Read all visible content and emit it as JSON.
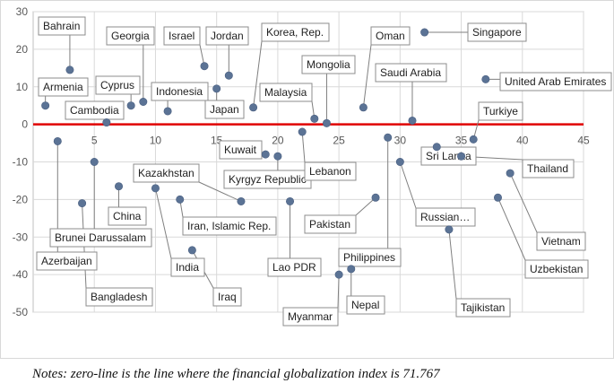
{
  "chart_data": {
    "type": "scatter",
    "title": "",
    "xlabel": "",
    "ylabel": "",
    "xlim": [
      0,
      45
    ],
    "ylim": [
      -50,
      30
    ],
    "xticks": [
      5,
      10,
      15,
      20,
      25,
      30,
      35,
      40,
      45
    ],
    "yticks": [
      30,
      20,
      10,
      0,
      -10,
      -20,
      -30,
      -40,
      -50
    ],
    "grid": true,
    "reference_line": {
      "y": 0,
      "color": "#e00000"
    },
    "marker_color": "#5b7395",
    "points": [
      {
        "label": "Bahrain",
        "x": 3,
        "y": 14.5
      },
      {
        "label": "Armenia",
        "x": 1,
        "y": 5
      },
      {
        "label": "Cambodia",
        "x": 6,
        "y": 0.5
      },
      {
        "label": "Cyprus",
        "x": 8,
        "y": 5
      },
      {
        "label": "Georgia",
        "x": 9,
        "y": 6
      },
      {
        "label": "Indonesia",
        "x": 11,
        "y": 3.5
      },
      {
        "label": "Israel",
        "x": 14,
        "y": 15.5
      },
      {
        "label": "Japan",
        "x": 15,
        "y": 9.5
      },
      {
        "label": "Jordan",
        "x": 16,
        "y": 13
      },
      {
        "label": "Korea, Rep.",
        "x": 18,
        "y": 4.5
      },
      {
        "label": "Malaysia",
        "x": 23,
        "y": 1.5
      },
      {
        "label": "Mongolia",
        "x": 24,
        "y": 0.3
      },
      {
        "label": "Oman",
        "x": 27,
        "y": 4.5
      },
      {
        "label": "Singapore",
        "x": 32,
        "y": 24.5
      },
      {
        "label": "Saudi Arabia",
        "x": 31,
        "y": 1
      },
      {
        "label": "United Arab Emirates",
        "x": 37,
        "y": 12
      },
      {
        "label": "Turkiye",
        "x": 36,
        "y": -4
      },
      {
        "label": "Azerbaijan",
        "x": 2,
        "y": -4.5
      },
      {
        "label": "Brunei Darussalam",
        "x": 5,
        "y": -10
      },
      {
        "label": "Bangladesh",
        "x": 4,
        "y": -21
      },
      {
        "label": "China",
        "x": 7,
        "y": -16.5
      },
      {
        "label": "India",
        "x": 10,
        "y": -17
      },
      {
        "label": "Iran, Islamic Rep.",
        "x": 12,
        "y": -20
      },
      {
        "label": "Iraq",
        "x": 13,
        "y": -33.5
      },
      {
        "label": "Kazakhstan",
        "x": 17,
        "y": -20.5
      },
      {
        "label": "Kuwait",
        "x": 19,
        "y": -8
      },
      {
        "label": "Kyrgyz Republic",
        "x": 20,
        "y": -8.5
      },
      {
        "label": "Lao PDR",
        "x": 21,
        "y": -20.5
      },
      {
        "label": "Lebanon",
        "x": 22,
        "y": -2
      },
      {
        "label": "Pakistan",
        "x": 28,
        "y": -19.5
      },
      {
        "label": "Philippines",
        "x": 29,
        "y": -3.5
      },
      {
        "label": "Myanmar",
        "x": 25,
        "y": -40
      },
      {
        "label": "Nepal",
        "x": 26,
        "y": -38.5
      },
      {
        "label": "Russian…",
        "x": 30,
        "y": -10
      },
      {
        "label": "Sri Lanka",
        "x": 33,
        "y": -6
      },
      {
        "label": "Tajikistan",
        "x": 34,
        "y": -28
      },
      {
        "label": "Thailand",
        "x": 35,
        "y": -8.5
      },
      {
        "label": "Uzbekistan",
        "x": 38,
        "y": -19.5
      },
      {
        "label": "Vietnam",
        "x": 39,
        "y": -13
      }
    ]
  },
  "note": "Notes: zero-line is the line where the financial globalization index is 71.767"
}
